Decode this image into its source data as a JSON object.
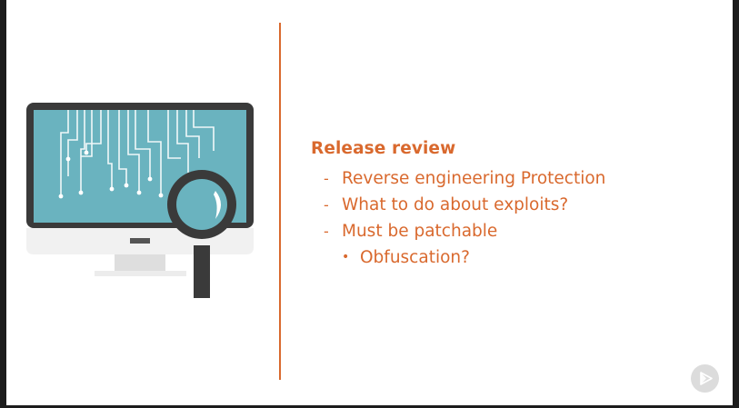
{
  "slide": {
    "heading": "Release review",
    "items": [
      "Reverse engineering Protection",
      "What to do about exploits?",
      "Must be patchable"
    ],
    "subitems": [
      "Obfuscation?"
    ],
    "bullet_dash": "-",
    "bullet_dot": "•"
  },
  "illustration": {
    "icon": "computer-with-magnifying-glass-icon"
  },
  "player": {
    "icon": "play-icon"
  },
  "colors": {
    "accent": "#d9692e",
    "screen": "#6ab3bf",
    "frame": "#3a3a3a",
    "background": "#ffffff"
  }
}
